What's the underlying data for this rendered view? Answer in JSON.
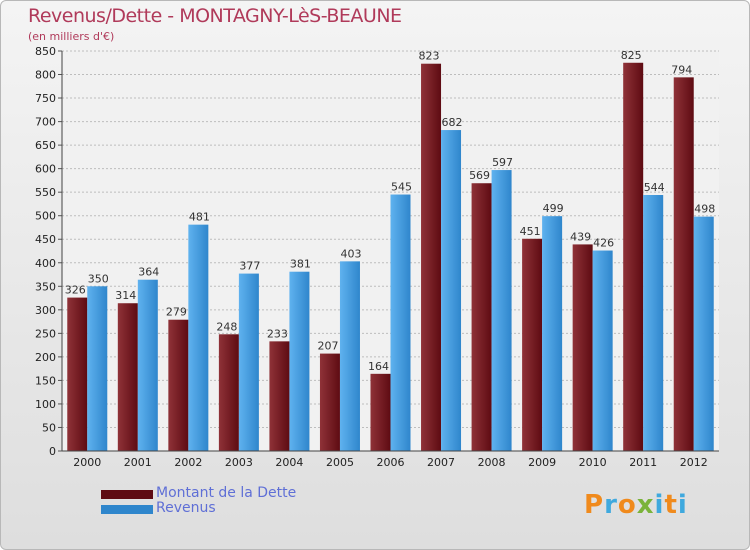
{
  "title": "Revenus/Dette - MONTAGNY-LèS-BEAUNE",
  "subtitle": "(en milliers d'€)",
  "colors": {
    "title": "#b03a5a",
    "debt_light": "#8f3238",
    "debt_dark": "#5e0b12",
    "revenue_light": "#5fb2ef",
    "revenue_dark": "#2f86cc",
    "legend_text": "#5f6fd6"
  },
  "logo": {
    "text": "Proxiti",
    "letters": [
      "P",
      "r",
      "o",
      "x",
      "i",
      "t",
      "i"
    ],
    "letter_colors": [
      "#f08a1c",
      "#3fa9de",
      "#f08a1c",
      "#7ab33a",
      "#3fa9de",
      "#f08a1c",
      "#3fa9de"
    ]
  },
  "chart_data": {
    "type": "bar",
    "title": "Revenus/Dette - MONTAGNY-LèS-BEAUNE",
    "subtitle": "(en milliers d'€)",
    "categories": [
      "2000",
      "2001",
      "2002",
      "2003",
      "2004",
      "2005",
      "2006",
      "2007",
      "2008",
      "2009",
      "2010",
      "2011",
      "2012"
    ],
    "series": [
      {
        "name": "Montant de la Dette",
        "values": [
          326,
          314,
          279,
          248,
          233,
          207,
          164,
          823,
          569,
          451,
          439,
          825,
          794
        ]
      },
      {
        "name": "Revenus",
        "values": [
          350,
          364,
          481,
          377,
          381,
          403,
          545,
          682,
          597,
          499,
          426,
          544,
          498
        ]
      }
    ],
    "ylim": [
      0,
      850
    ],
    "yticks": [
      0,
      50,
      100,
      150,
      200,
      250,
      300,
      350,
      400,
      450,
      500,
      550,
      600,
      650,
      700,
      750,
      800,
      850
    ],
    "grid": true,
    "legend": "bottom-left"
  }
}
